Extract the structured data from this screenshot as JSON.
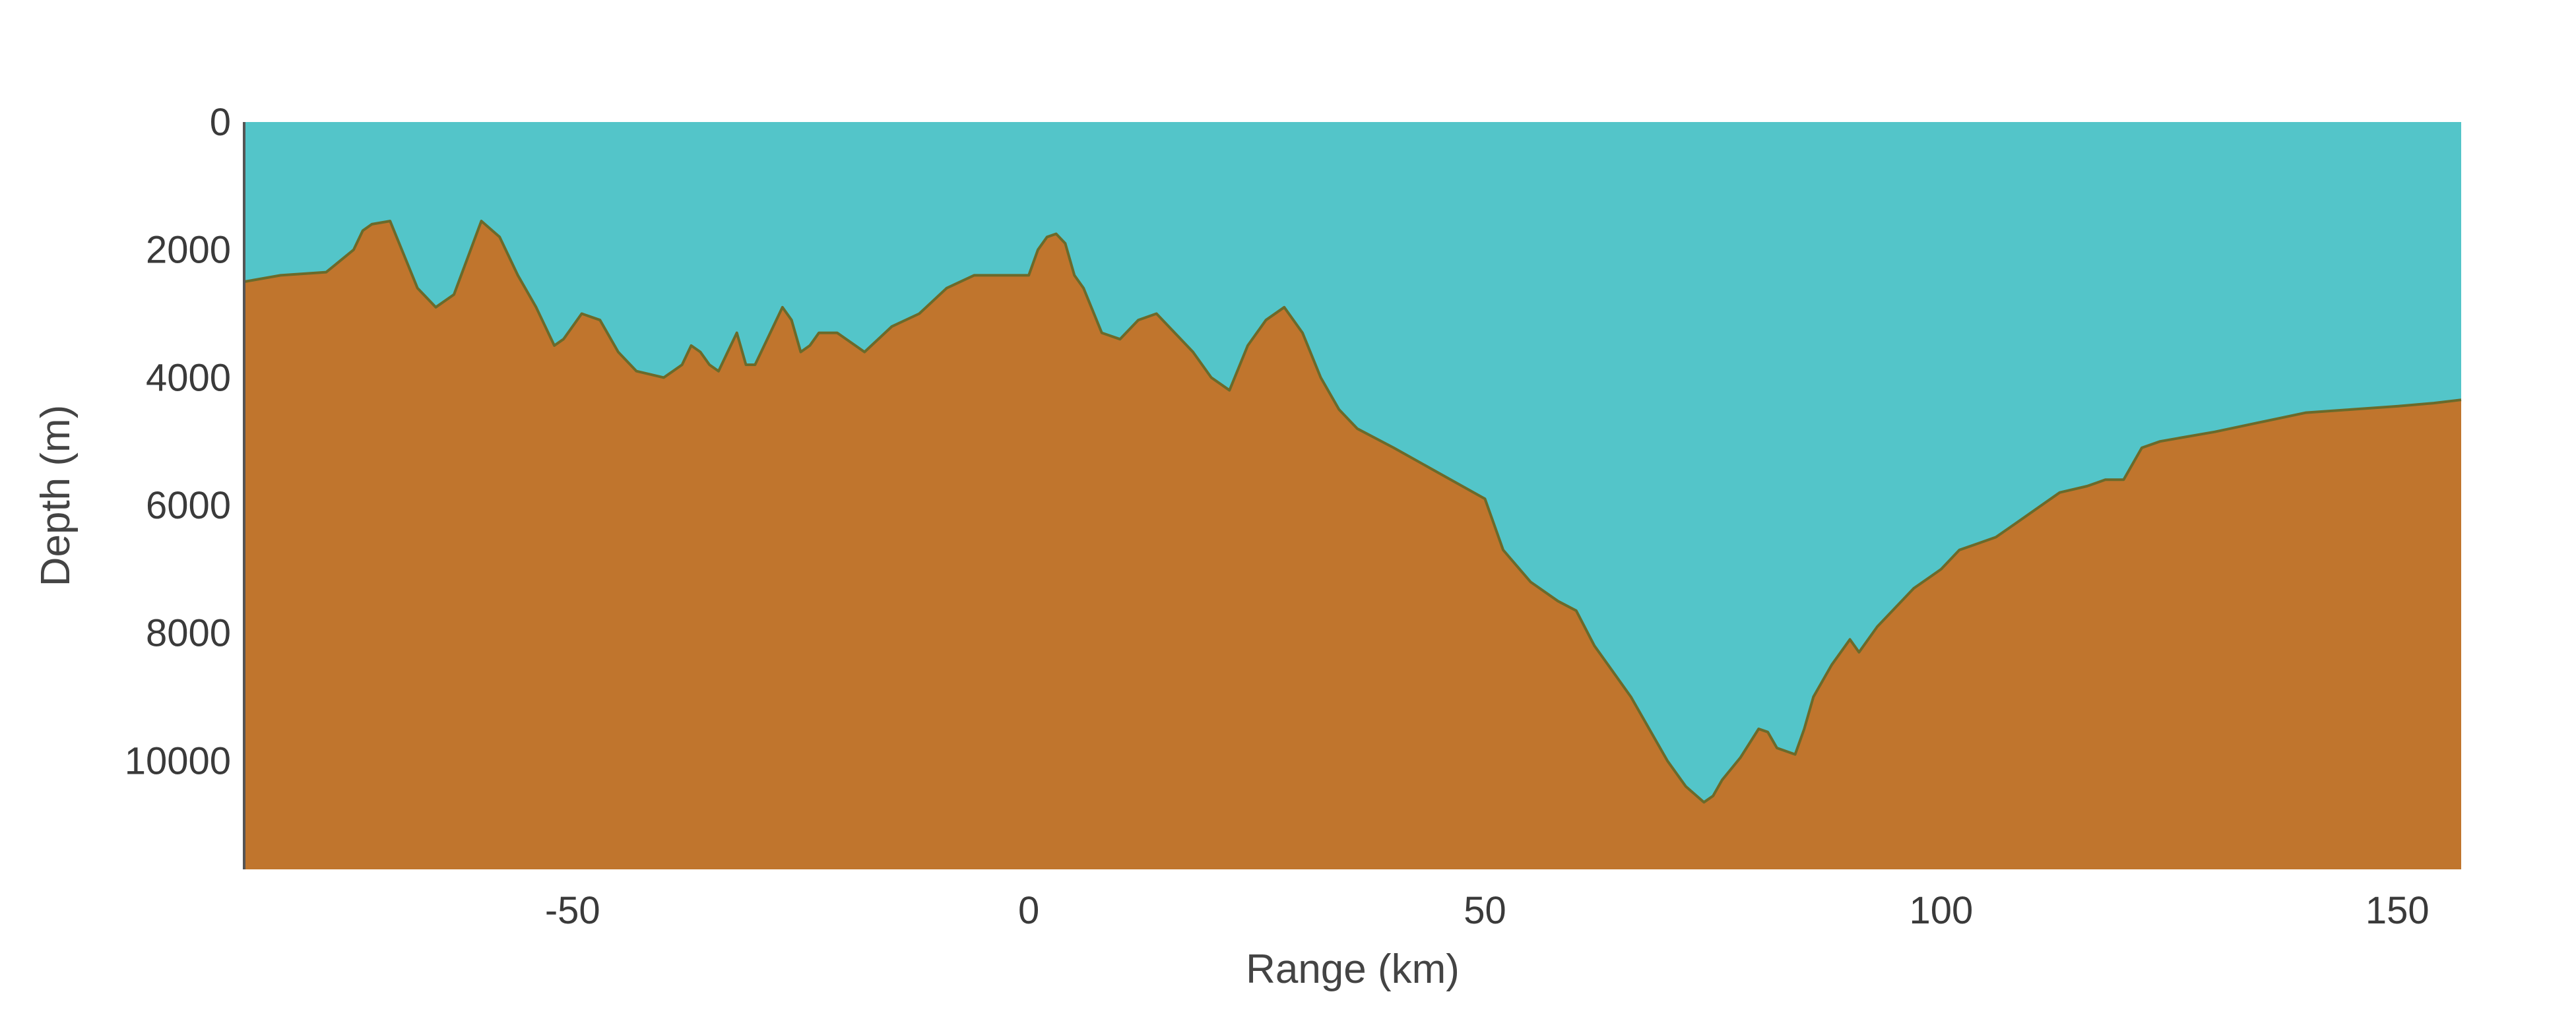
{
  "chart_data": {
    "type": "area",
    "title": "",
    "xlabel": "Range (km)",
    "ylabel": "Depth (m)",
    "xlim": [
      -86,
      157
    ],
    "ylim": [
      0,
      11700
    ],
    "y_inverted": true,
    "grid": false,
    "legend": "none",
    "x_ticks": [
      -50,
      0,
      50,
      100,
      150
    ],
    "y_ticks": [
      0,
      2000,
      4000,
      6000,
      8000,
      10000
    ],
    "colors": {
      "water": "#53c5c9",
      "seafloor": "#c0752d",
      "outline": "#6b6a2a",
      "axis": "#555555"
    },
    "series": [
      {
        "x": [
          -86,
          -82,
          -77,
          -74,
          -73,
          -72,
          -70,
          -67,
          -65,
          -63,
          -60,
          -58,
          -56,
          -54,
          -52,
          -51,
          -49,
          -47,
          -45,
          -43,
          -40,
          -38,
          -37,
          -36,
          -35,
          -34,
          -33,
          -32,
          -31,
          -30,
          -28,
          -27,
          -26,
          -25,
          -24,
          -23,
          -21,
          -18,
          -15,
          -12,
          -9,
          -6,
          -4,
          -2,
          0,
          1,
          2,
          3,
          4,
          5,
          6,
          8,
          10,
          12,
          14,
          16,
          18,
          20,
          22,
          24,
          26,
          28,
          30,
          32,
          34,
          36,
          40,
          45,
          50,
          52,
          55,
          58,
          60,
          62,
          64,
          66,
          68,
          70,
          72,
          74,
          75,
          76,
          78,
          80,
          81,
          82,
          84,
          85,
          86,
          88,
          90,
          91,
          93,
          95,
          97,
          100,
          102,
          104,
          106,
          108,
          110,
          113,
          116,
          118,
          120,
          122,
          124,
          126,
          130,
          135,
          140,
          145,
          150,
          154,
          157
        ],
        "y": [
          2500,
          2400,
          2350,
          2000,
          1700,
          1600,
          1550,
          2600,
          2900,
          2700,
          1550,
          1800,
          2400,
          2900,
          3500,
          3400,
          3000,
          3100,
          3600,
          3900,
          4000,
          3800,
          3500,
          3600,
          3800,
          3900,
          3600,
          3300,
          3800,
          3800,
          3200,
          2900,
          3100,
          3600,
          3500,
          3300,
          3300,
          3600,
          3200,
          3000,
          2600,
          2400,
          2400,
          2400,
          2400,
          2000,
          1800,
          1750,
          1900,
          2400,
          2600,
          3300,
          3400,
          3100,
          3000,
          3300,
          3600,
          4000,
          4200,
          3500,
          3100,
          2900,
          3300,
          4000,
          4500,
          4800,
          5100,
          5500,
          5900,
          6700,
          7200,
          7500,
          7650,
          8200,
          8600,
          9000,
          9500,
          10000,
          10400,
          10650,
          10550,
          10300,
          9950,
          9500,
          9550,
          9800,
          9900,
          9500,
          9000,
          8500,
          8100,
          8300,
          7900,
          7600,
          7300,
          7000,
          6700,
          6600,
          6500,
          6300,
          6100,
          5800,
          5700,
          5600,
          5600,
          5100,
          5000,
          4950,
          4850,
          4700,
          4550,
          4500,
          4450,
          4400,
          4350
        ]
      }
    ]
  }
}
